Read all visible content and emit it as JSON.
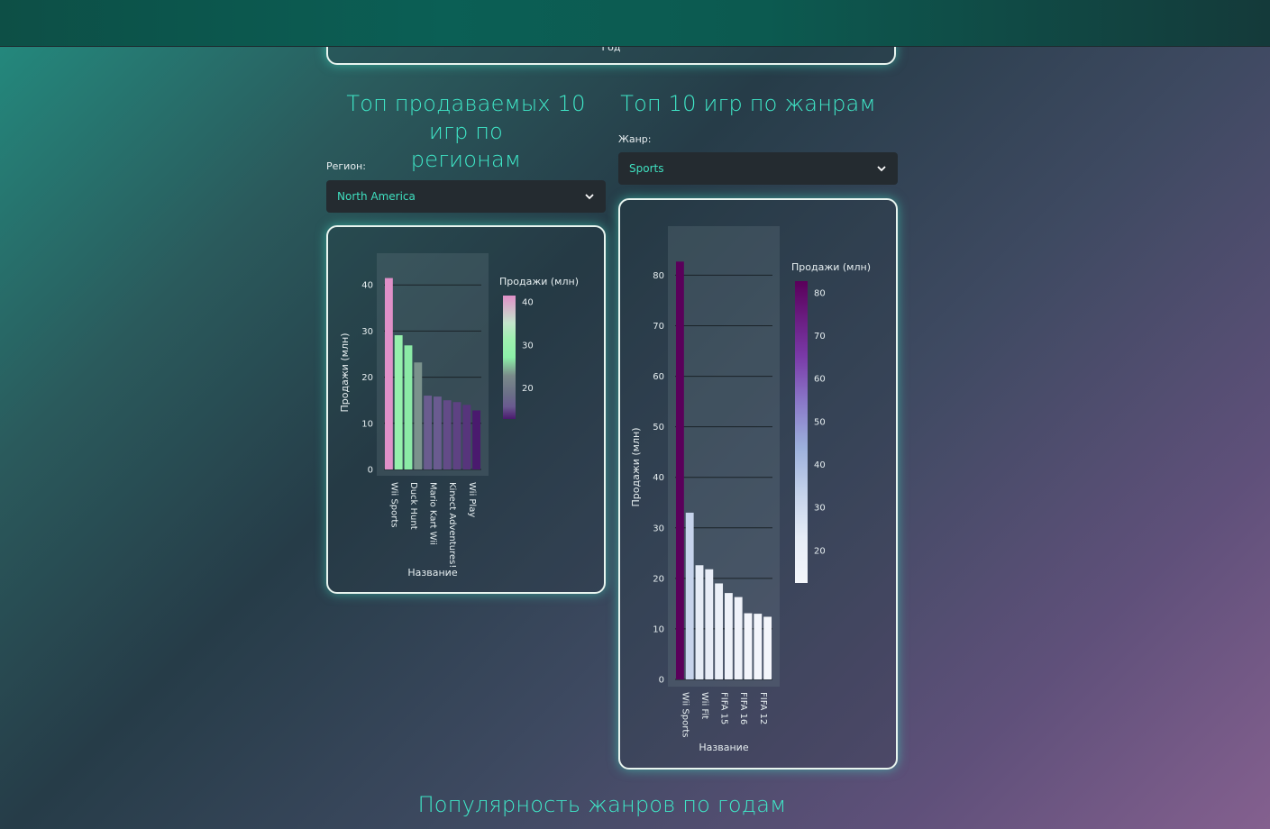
{
  "top_chart": {
    "xlabel": "Год"
  },
  "region_section": {
    "title_line1": "Топ продаваемых 10 игр по",
    "title_line2": "регионам",
    "label": "Регион:",
    "selected": "North America"
  },
  "genre_section": {
    "title": "Топ 10 игр по жанрам",
    "label": "Жанр:",
    "selected": "Sports"
  },
  "bottom_title": "Популярность жанров по годам",
  "colors": {
    "accent": "#3fe8c8",
    "card_border": "#e8f4ef",
    "select_bg": "#242b30"
  },
  "chart_data": [
    {
      "type": "bar",
      "title": "",
      "xlabel": "Название",
      "ylabel": "Продажи (млн)",
      "ylim": [
        0,
        42
      ],
      "yticks": [
        0,
        10,
        20,
        30,
        40
      ],
      "categories": [
        "Wii Sports",
        "",
        "Duck Hunt",
        "",
        "Mario Kart Wii",
        "",
        "Kinect Adventures!",
        "",
        "Wii Play",
        ""
      ],
      "values": [
        41.5,
        29.1,
        26.9,
        23.2,
        16.0,
        15.8,
        15.0,
        14.6,
        14.0,
        12.8
      ],
      "colorbar": {
        "title": "Продажи (млн)",
        "ticks": [
          20,
          30,
          40
        ],
        "range": [
          12.8,
          41.5
        ]
      },
      "grid": true
    },
    {
      "type": "bar",
      "title": "",
      "xlabel": "Название",
      "ylabel": "Продажи (млн)",
      "ylim": [
        0,
        84
      ],
      "yticks": [
        0,
        10,
        20,
        30,
        40,
        50,
        60,
        70,
        80
      ],
      "categories": [
        "Wii Sports",
        "",
        "Wii Fit",
        "",
        "FIFA 15",
        "",
        "FIFA 16",
        "",
        "FIFA 12",
        ""
      ],
      "values": [
        82.7,
        33.0,
        22.6,
        21.8,
        19.0,
        17.1,
        16.3,
        13.1,
        13.0,
        12.4
      ],
      "colorbar": {
        "title": "Продажи (млн)",
        "ticks": [
          20,
          30,
          40,
          50,
          60,
          70,
          80
        ],
        "range": [
          12.4,
          82.7
        ]
      },
      "grid": true
    }
  ]
}
